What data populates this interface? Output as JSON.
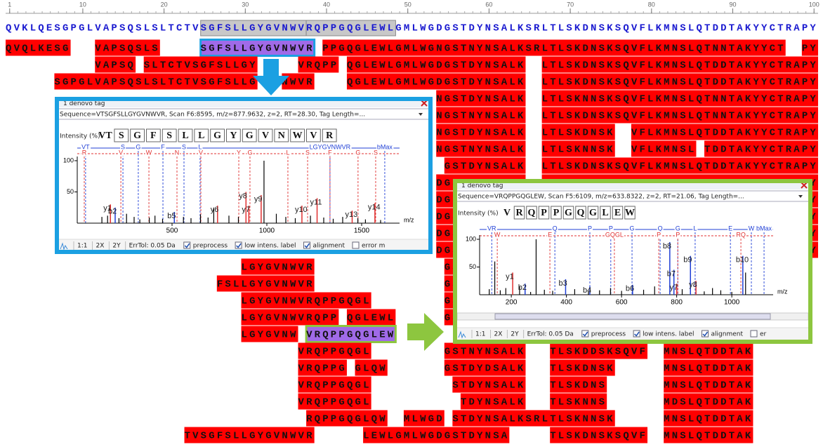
{
  "ruler_ticks": [
    1,
    10,
    20,
    30,
    40,
    50,
    60,
    70,
    80,
    90,
    100
  ],
  "reference": "QVKLQESGPGLVAPSQSLSLTCTVSGFSLLGYGVNWVRQPPGQGLEWLGMLWGDGSTDYNSALKSRLTLSKDNSKSQVFLKMNSLQTDDTAKYYCTRAPY",
  "rows": [
    {
      "text": "QVQLKESG   VAPSQSLS     SGFSLLGYGVNWVR PPGQGLEWLGMLWGNGSTNYNSALKSRLTLSKDNSKSQVFLKMNSLQTNNTAKYYCT  PY",
      "highlight_run": 2
    },
    {
      "text": "           VAPSQ SLTCTVSGFSLLGY     VRQPP QGLEWLGMLWGDGSTDYNSALK  LTLSKDNSKSQVFLKMNSLQTDDTAKYYCTRAPY"
    },
    {
      "text": "      SGPGLVAPSQSLSLTCTVSGFSLLG   NWVR    QGLEWLGMLWGDGSTDYNSALK  LTLSKDNSKSQVFLKMNSLQTDDTAKYYCTRAPY"
    },
    {
      "text": "                                                     NGSTDYNSALK  LTLSKNNSKSQVFLKMNSLQTNNTAKYYCTRAPY"
    },
    {
      "text": "                                                     NGSTNYNSALK  LTLSKDNSKSQVFLKMNSLQTNNTAKYYCTRAPY"
    },
    {
      "text": "                                                     NGSTDYNSALK  LTLSKDNSK  VFLKMNSLQTDDTAKYYCTRAPY"
    },
    {
      "text": "                                                     NGSTNYNSALK  LTLSKNNSK  VFLKMNSL TDDTAKYYCTRAPY"
    },
    {
      "text": "                                                      GSTDYNSALK  LTLSKDNSKSQVFLKMNSLQTDDTAKYYCTRAPY"
    },
    {
      "text": "                                                     DGSTDYNSALK  LTLSKDNSKSQVFLKMNSLQTDDTAKYYCTRAPY"
    },
    {
      "text": "                                                     DGSTDYNSALK  LTLSKDNSKSQVFLKMNSLQTDDTAKYYCTRAPY"
    },
    {
      "text": "                                                     DGSTDYNSALK  LTLSKDNSKSQVFLKMNSLQTDDTAKYYCTRAPY"
    },
    {
      "text": "                                                     DGSTDYNSALK  LTLSKDNSKSQVFLKMNSLQTDDTAKYYCTRAPY"
    },
    {
      "text": "                                                     DGSTDYNSALK  LTLSKDNSKSQVFLKMNSLQTDDTAKYYCTRAPY"
    },
    {
      "text": "                             LGYGVNWVR                GSTDYNSALK"
    },
    {
      "text": "                          FSLLGYGVNWVR                GSTDYNSALK"
    },
    {
      "text": "                             LGYGVNWVRQPPGQGL         GSTDYNSALK"
    },
    {
      "text": "                             LGYGVNWVRQPP QGLEWL      GSTDYNSALK"
    },
    {
      "text": "                             LGYGVNW VRQPPGQGLEW",
      "highlight_run": 1
    },
    {
      "text": "                                    VRQPPGQGL         GSTNYNSALK   TLSKDDSKSQVF  MNSLQTDDTAK"
    },
    {
      "text": "                                    VRQPPG GLQW       GSTDYDSALK   TLSKDNSK      MNSLQTDDTAK"
    },
    {
      "text": "                                    VRQPPGQGL          STDYNSALK   TLSKDNS       MNSLQTDDTAK"
    },
    {
      "text": "                                    VRQPPGQGL           TDYNSALK   TLSKNNS       MDSLQTDDTAK"
    },
    {
      "text": "                                     RQPPGQGLQW  MLWGD STDYNSALKSRLTLSKNNSK      MNSLQTDDTAK"
    },
    {
      "text": "                      TVSGFSLLGYGVNWVR      LEWLGMLWGDGSTDYNSA     TLSKDNSKSQVF  MNSLQTDDTAK"
    }
  ],
  "popups": [
    {
      "title": "1 denovo tag",
      "sequence_info": "Sequence=VTSGFSLLGYGVNWVR, Scan F6:8595, m/z=877.9632, z=2, RT=28.30, Tag Length=...",
      "intensity_label": "Intensity (%)",
      "tag": [
        "VT",
        "S",
        "G",
        "F",
        "S",
        "L",
        "L",
        "G",
        "Y",
        "G",
        "V",
        "N",
        "W",
        "V",
        "R"
      ],
      "xlim": [
        0,
        1700
      ],
      "xticks": [
        500,
        1000,
        1500
      ],
      "xlabel": "m/z",
      "ylim": [
        0,
        100
      ],
      "yticks": [
        50,
        100
      ],
      "b_color": "#1f3fd6",
      "y_color": "#e03030",
      "ladder_b": [
        {
          "label": "VT",
          "mz": 44
        },
        {
          "label": "S",
          "mz": 241
        },
        {
          "label": "G",
          "mz": 322
        },
        {
          "label": "F",
          "mz": 452
        },
        {
          "label": "S",
          "mz": 563
        },
        {
          "label": "L",
          "mz": 648
        },
        {
          "label": "LGYGVNWVR",
          "mz": 1333
        },
        {
          "label": "bMax",
          "mz": 1622
        }
      ],
      "ladder_y": [
        {
          "label": "R",
          "mz": 37
        },
        {
          "label": "V",
          "mz": 230
        },
        {
          "label": "W",
          "mz": 378
        },
        {
          "label": "N",
          "mz": 526
        },
        {
          "label": "V",
          "mz": 652
        },
        {
          "label": "Y",
          "mz": 852
        },
        {
          "label": "G",
          "mz": 911
        },
        {
          "label": "L",
          "mz": 1111
        },
        {
          "label": "S",
          "mz": 1215
        },
        {
          "label": "F",
          "mz": 1333
        },
        {
          "label": "G",
          "mz": 1481
        },
        {
          "label": "S",
          "mz": 1574
        }
      ],
      "peaks": {
        "mz": [
          130,
          160,
          220,
          260,
          300,
          330,
          380,
          410,
          450,
          560,
          600,
          650,
          690,
          720,
          800,
          850,
          985,
          1050,
          1100,
          1150,
          1230,
          1300,
          1350,
          1400,
          1480,
          1520,
          1600
        ],
        "intensity": [
          10,
          12,
          8,
          15,
          10,
          6,
          9,
          12,
          7,
          10,
          8,
          14,
          9,
          25,
          12,
          10,
          100,
          15,
          10,
          8,
          12,
          9,
          7,
          10,
          8,
          6,
          5
        ]
      },
      "labeled_peaks": [
        {
          "label": "y1",
          "mz": 175,
          "intensity": 30
        },
        {
          "label": "b2",
          "mz": 200,
          "intensity": 25
        },
        {
          "label": "b5",
          "mz": 512,
          "intensity": 18
        },
        {
          "label": "y6",
          "mz": 740,
          "intensity": 28
        },
        {
          "label": "y7",
          "mz": 905,
          "intensity": 28
        },
        {
          "label": "y8",
          "mz": 890,
          "intensity": 50
        },
        {
          "label": "y9",
          "mz": 970,
          "intensity": 45
        },
        {
          "label": "y10",
          "mz": 1185,
          "intensity": 28
        },
        {
          "label": "y11",
          "mz": 1265,
          "intensity": 40
        },
        {
          "label": "y13",
          "mz": 1450,
          "intensity": 20
        },
        {
          "label": "y14",
          "mz": 1570,
          "intensity": 32
        }
      ],
      "toolbar": [
        "1:1",
        "2X",
        "2Y",
        "ErrTol: 0.05 Da"
      ],
      "checkboxes": [
        {
          "label": "preprocess",
          "checked": true
        },
        {
          "label": "low intens. label",
          "checked": true
        },
        {
          "label": "alignment",
          "checked": true
        },
        {
          "label": "error m",
          "checked": false
        }
      ]
    },
    {
      "title": "1 denovo tag",
      "sequence_info": "Sequence=VRQPPGQGLEW, Scan F5:6109, m/z=633.8322, z=2, RT=21.06, Tag Length=...",
      "intensity_label": "Intensity (%)",
      "tag": [
        "V",
        "R",
        "Q",
        "P",
        "P",
        "G",
        "Q",
        "G",
        "L",
        "E",
        "W"
      ],
      "xlim": [
        85,
        1150
      ],
      "xticks": [
        200,
        400,
        600,
        800,
        1000
      ],
      "xlabel": "m/z",
      "ylim": [
        0,
        100
      ],
      "yticks": [
        50,
        100
      ],
      "b_color": "#1f3fd6",
      "y_color": "#e03030",
      "ladder_b": [
        {
          "label": "VR",
          "mz": 129
        },
        {
          "label": "Q",
          "mz": 358
        },
        {
          "label": "P",
          "mz": 485
        },
        {
          "label": "P",
          "mz": 561
        },
        {
          "label": "G",
          "mz": 638
        },
        {
          "label": "Q",
          "mz": 740
        },
        {
          "label": "G",
          "mz": 804
        },
        {
          "label": "L",
          "mz": 867
        },
        {
          "label": "E",
          "mz": 995
        },
        {
          "label": "W",
          "mz": 1071
        },
        {
          "label": "bMax",
          "mz": 1117
        }
      ],
      "ladder_y": [
        {
          "label": "W",
          "mz": 149
        },
        {
          "label": "E",
          "mz": 340
        },
        {
          "label": "GQGL",
          "mz": 574
        },
        {
          "label": "P",
          "mz": 735
        },
        {
          "label": "P",
          "mz": 804
        },
        {
          "label": "RQ",
          "mz": 1033
        }
      ],
      "peaks": {
        "mz": [
          120,
          140,
          160,
          180,
          230,
          270,
          290,
          320,
          350,
          430,
          480,
          520,
          560,
          600,
          680,
          720,
          820,
          900,
          930,
          960,
          1000,
          1050
        ],
        "intensity": [
          10,
          60,
          8,
          12,
          15,
          5,
          100,
          9,
          7,
          10,
          6,
          8,
          12,
          7,
          9,
          15,
          10,
          6,
          12,
          8,
          5,
          40
        ]
      },
      "labeled_peaks": [
        {
          "label": "b8",
          "mz": 775,
          "intensity": 95
        },
        {
          "label": "b9",
          "mz": 850,
          "intensity": 70
        },
        {
          "label": "b10",
          "mz": 1040,
          "intensity": 70
        },
        {
          "label": "y1",
          "mz": 205,
          "intensity": 40
        },
        {
          "label": "b2",
          "mz": 250,
          "intensity": 20
        },
        {
          "label": "b3",
          "mz": 397,
          "intensity": 28
        },
        {
          "label": "b4",
          "mz": 485,
          "intensity": 15
        },
        {
          "label": "b6",
          "mz": 640,
          "intensity": 18
        },
        {
          "label": "b7",
          "mz": 790,
          "intensity": 45
        },
        {
          "label": "y7",
          "mz": 800,
          "intensity": 20
        },
        {
          "label": "y8",
          "mz": 870,
          "intensity": 25
        }
      ],
      "toolbar": [
        "1:1",
        "2X",
        "2Y",
        "ErrTol: 0.05 Da"
      ],
      "checkboxes": [
        {
          "label": "preprocess",
          "checked": true
        },
        {
          "label": "low intens. label",
          "checked": true
        },
        {
          "label": "alignment",
          "checked": true
        },
        {
          "label": "er",
          "checked": false
        }
      ]
    }
  ]
}
